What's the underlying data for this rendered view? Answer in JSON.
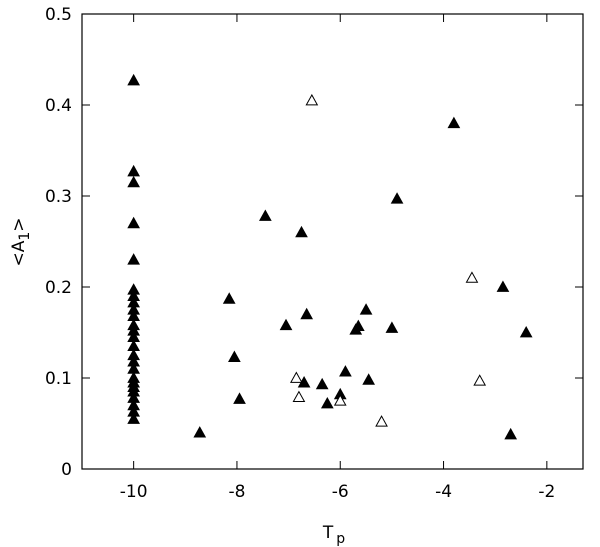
{
  "chart_data": {
    "type": "scatter",
    "xlabel": [
      "T",
      "p"
    ],
    "ylabel": [
      "<A",
      "1",
      ">"
    ],
    "xlim": [
      -11,
      -1.3
    ],
    "ylim": [
      0,
      0.5
    ],
    "xticks": [
      -10,
      -8,
      -6,
      -4,
      -2
    ],
    "yticks": [
      0,
      0.1,
      0.2,
      0.3,
      0.4,
      0.5
    ],
    "series": [
      {
        "color": "#000000",
        "filled": true,
        "x": [
          -10,
          -10,
          -10,
          -10,
          -10,
          -10,
          -10,
          -10,
          -10,
          -10,
          -10,
          -10,
          -10,
          -10,
          -10,
          -10,
          -10,
          -10,
          -10,
          -10,
          -10,
          -10,
          -10,
          -10,
          -10,
          -8.72,
          -8.15,
          -8.05,
          -7.95,
          -7.45,
          -7.05,
          -6.75,
          -6.7,
          -6.65,
          -6.35,
          -6.25,
          -6.0,
          -5.9,
          -5.7,
          -5.65,
          -5.5,
          -5.45,
          -5.0,
          -4.9,
          -3.8,
          -2.85,
          -2.7,
          -2.4
        ],
        "values": [
          0.427,
          0.327,
          0.315,
          0.27,
          0.23,
          0.197,
          0.19,
          0.183,
          0.175,
          0.168,
          0.158,
          0.152,
          0.145,
          0.135,
          0.125,
          0.118,
          0.11,
          0.1,
          0.095,
          0.09,
          0.085,
          0.078,
          0.07,
          0.063,
          0.055,
          0.04,
          0.187,
          0.123,
          0.077,
          0.278,
          0.158,
          0.26,
          0.095,
          0.17,
          0.093,
          0.072,
          0.082,
          0.107,
          0.153,
          0.157,
          0.175,
          0.098,
          0.155,
          0.297,
          0.38,
          0.2,
          0.038,
          0.15
        ]
      },
      {
        "color": "#000000",
        "filled": false,
        "x": [
          -6.55,
          -6.85,
          -6.8,
          -6.0,
          -5.2,
          -3.45,
          -3.3
        ],
        "values": [
          0.405,
          0.1,
          0.079,
          0.075,
          0.052,
          0.21,
          0.097
        ]
      }
    ]
  }
}
